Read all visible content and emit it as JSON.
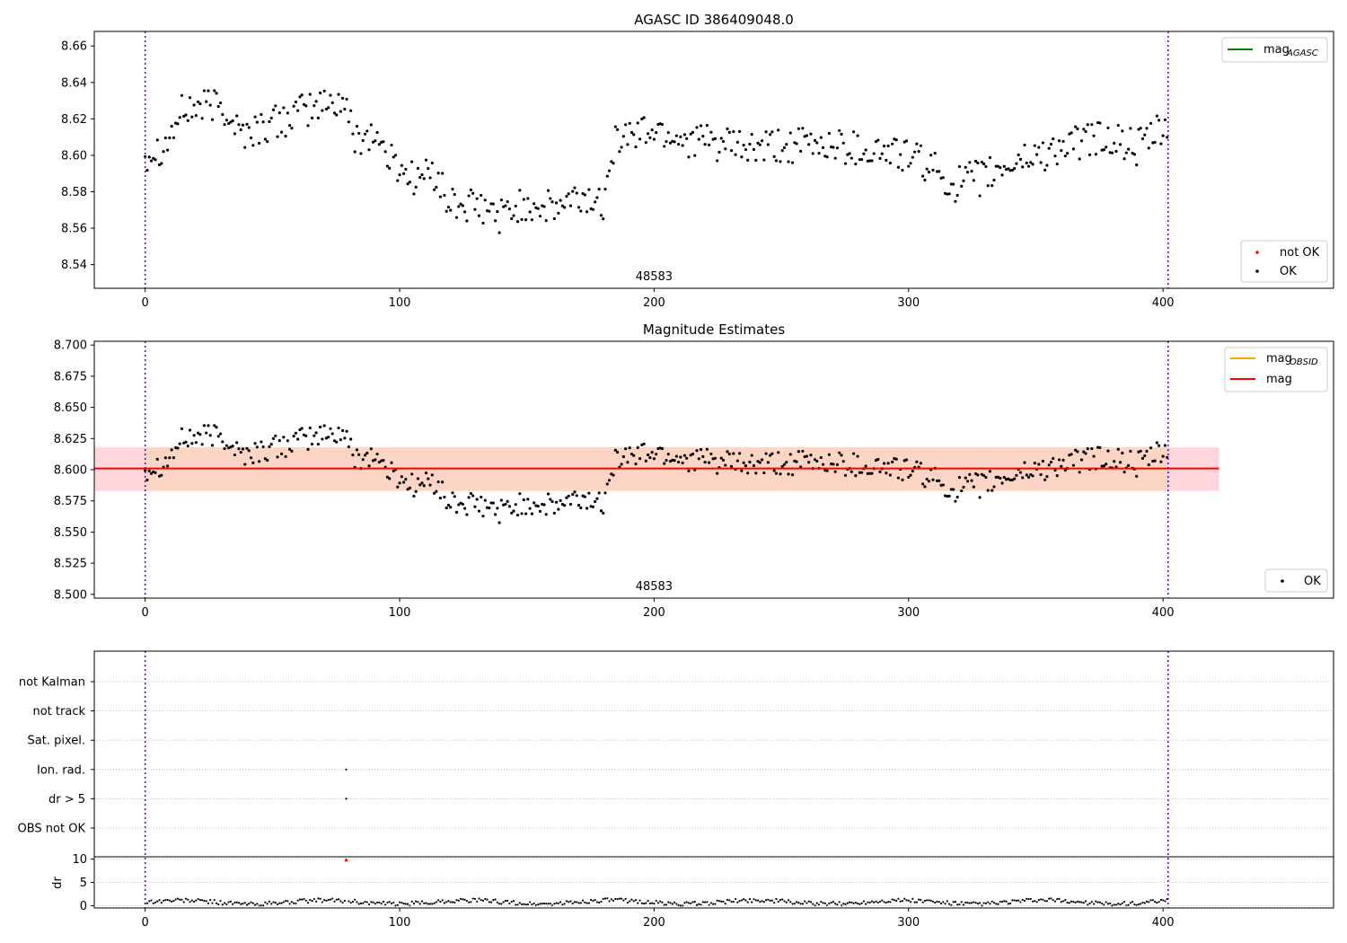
{
  "chart_data": [
    {
      "type": "scatter",
      "title": "AGASC ID 386409048.0",
      "xlim": [
        -20,
        467
      ],
      "ylim": [
        8.527,
        8.668
      ],
      "x_ticks": [
        0,
        100,
        200,
        300,
        400
      ],
      "x_tick_labels": [
        "0",
        "100",
        "200",
        "300",
        "400"
      ],
      "y_ticks": [
        8.54,
        8.56,
        8.58,
        8.6,
        8.62,
        8.64,
        8.66
      ],
      "y_tick_labels": [
        "8.54",
        "8.56",
        "8.58",
        "8.60",
        "8.62",
        "8.64",
        "8.66"
      ],
      "annotation": "48583",
      "annotation_x": 200,
      "vlines": [
        0,
        402
      ],
      "legend_upper": [
        {
          "label": "mag",
          "sub": "AGASC",
          "color": "#008000",
          "kind": "line"
        }
      ],
      "legend_lower": [
        {
          "label": "not OK",
          "color": "#ff0000",
          "kind": "dot"
        },
        {
          "label": "OK",
          "color": "#000000",
          "kind": "dot"
        }
      ],
      "grid": false
    },
    {
      "type": "scatter",
      "title": "Magnitude Estimates",
      "xlim": [
        -20,
        467
      ],
      "ylim": [
        8.497,
        8.703
      ],
      "x_ticks": [
        0,
        100,
        200,
        300,
        400
      ],
      "x_tick_labels": [
        "0",
        "100",
        "200",
        "300",
        "400"
      ],
      "y_ticks": [
        8.5,
        8.525,
        8.55,
        8.575,
        8.6,
        8.625,
        8.65,
        8.675,
        8.7
      ],
      "y_tick_labels": [
        "8.500",
        "8.525",
        "8.550",
        "8.575",
        "8.600",
        "8.625",
        "8.650",
        "8.675",
        "8.700"
      ],
      "annotation": "48583",
      "annotation_x": 200,
      "vlines": [
        0,
        402
      ],
      "mag_line": 8.601,
      "band_outer": {
        "x": [
          -20,
          422
        ],
        "y": [
          8.583,
          8.618
        ],
        "color": "#ffd6dc"
      },
      "band_inner": {
        "x": [
          0,
          402
        ],
        "y": [
          8.583,
          8.618
        ],
        "color": "#fcd5c4"
      },
      "legend_upper": [
        {
          "label": "mag",
          "sub": "OBSID",
          "color": "#ffa500",
          "kind": "line"
        },
        {
          "label": "mag",
          "sub": "",
          "color": "#ff0000",
          "kind": "line"
        }
      ],
      "legend_lower": [
        {
          "label": "OK",
          "color": "#000000",
          "kind": "dot"
        }
      ],
      "grid": false
    },
    {
      "type": "scatter",
      "title": "",
      "xlim": [
        -20,
        467
      ],
      "x_ticks": [
        0,
        100,
        200,
        300,
        400
      ],
      "x_tick_labels": [
        "0",
        "100",
        "200",
        "300",
        "400"
      ],
      "vlines": [
        0,
        402
      ],
      "flag_rows": [
        "not Kalman",
        "not track",
        "Sat. pixel.",
        "Ion. rad.",
        "dr > 5",
        "OBS not OK"
      ],
      "flag_points": [
        {
          "row": "Ion. rad.",
          "x": 79
        },
        {
          "row": "dr > 5",
          "x": 79
        }
      ],
      "dr_ylabel": "dr",
      "dr_ylim": [
        -0.5,
        10.5
      ],
      "dr_y_ticks": [
        0,
        5,
        10
      ],
      "dr_y_tick_labels": [
        "0",
        "5",
        "10"
      ],
      "dr_outlier": {
        "x": 79,
        "y": 9.8,
        "color": "#ff0000"
      },
      "grid": true
    }
  ]
}
